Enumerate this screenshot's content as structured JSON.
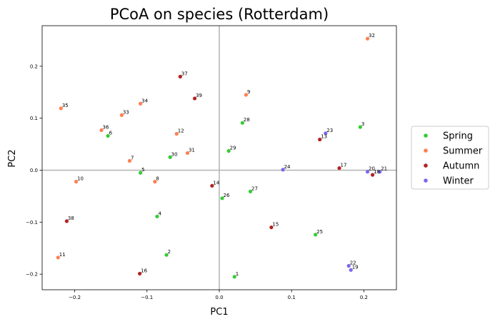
{
  "chart_data": {
    "type": "scatter",
    "title": "PCoA on species (Rotterdam)",
    "xlabel": "PC1",
    "ylabel": "PC2",
    "xlim": [
      -0.245,
      0.245
    ],
    "ylim": [
      -0.23,
      0.278
    ],
    "xticks": [
      -0.2,
      -0.1,
      0.0,
      0.1,
      0.2
    ],
    "xtick_labels": [
      "−0.2",
      "−0.1",
      "0.0",
      "0.1",
      "0.2"
    ],
    "yticks": [
      -0.2,
      -0.1,
      0.0,
      0.1,
      0.2
    ],
    "ytick_labels": [
      "−0.2",
      "−0.1",
      "0.0",
      "0.1",
      "0.2"
    ],
    "grid": false,
    "reference_lines": {
      "x": 0,
      "y": 0
    },
    "legend_position": "outside-right",
    "series": [
      {
        "name": "Spring",
        "color": "#33cc33",
        "points": [
          {
            "label": "1",
            "x": 0.021,
            "y": -0.205
          },
          {
            "label": "2",
            "x": -0.073,
            "y": -0.163
          },
          {
            "label": "3",
            "x": 0.195,
            "y": 0.083
          },
          {
            "label": "4",
            "x": -0.086,
            "y": -0.089
          },
          {
            "label": "5",
            "x": -0.109,
            "y": -0.005
          },
          {
            "label": "6",
            "x": -0.154,
            "y": 0.066
          },
          {
            "label": "25",
            "x": 0.133,
            "y": -0.124
          },
          {
            "label": "26",
            "x": 0.004,
            "y": -0.054
          },
          {
            "label": "27",
            "x": 0.043,
            "y": -0.041
          },
          {
            "label": "28",
            "x": 0.032,
            "y": 0.091
          },
          {
            "label": "29",
            "x": 0.013,
            "y": 0.037
          },
          {
            "label": "30",
            "x": -0.068,
            "y": 0.025
          }
        ]
      },
      {
        "name": "Summer",
        "color": "#ff7f50",
        "points": [
          {
            "label": "7",
            "x": -0.124,
            "y": 0.018
          },
          {
            "label": "8",
            "x": -0.089,
            "y": -0.022
          },
          {
            "label": "9",
            "x": 0.037,
            "y": 0.145
          },
          {
            "label": "10",
            "x": -0.198,
            "y": -0.022
          },
          {
            "label": "11",
            "x": -0.223,
            "y": -0.168
          },
          {
            "label": "12",
            "x": -0.059,
            "y": 0.07
          },
          {
            "label": "31",
            "x": -0.044,
            "y": 0.033
          },
          {
            "label": "32",
            "x": 0.205,
            "y": 0.253
          },
          {
            "label": "33",
            "x": -0.135,
            "y": 0.106
          },
          {
            "label": "34",
            "x": -0.109,
            "y": 0.128
          },
          {
            "label": "35",
            "x": -0.219,
            "y": 0.119
          },
          {
            "label": "36",
            "x": -0.163,
            "y": 0.077
          }
        ]
      },
      {
        "name": "Autumn",
        "color": "#b22222",
        "points": [
          {
            "label": "13",
            "x": 0.139,
            "y": 0.059
          },
          {
            "label": "14",
            "x": -0.01,
            "y": -0.03
          },
          {
            "label": "15",
            "x": 0.072,
            "y": -0.11
          },
          {
            "label": "16",
            "x": -0.11,
            "y": -0.199
          },
          {
            "label": "17",
            "x": 0.166,
            "y": 0.004
          },
          {
            "label": "18",
            "x": 0.212,
            "y": -0.009
          },
          {
            "label": "37",
            "x": -0.054,
            "y": 0.18
          },
          {
            "label": "38",
            "x": -0.211,
            "y": -0.098
          },
          {
            "label": "39",
            "x": -0.034,
            "y": 0.138
          }
        ]
      },
      {
        "name": "Winter",
        "color": "#7b68ee",
        "points": [
          {
            "label": "19",
            "x": 0.182,
            "y": -0.192
          },
          {
            "label": "20",
            "x": 0.205,
            "y": -0.003
          },
          {
            "label": "21",
            "x": 0.222,
            "y": -0.003
          },
          {
            "label": "22",
            "x": 0.179,
            "y": -0.184
          },
          {
            "label": "23",
            "x": 0.147,
            "y": 0.071
          },
          {
            "label": "24",
            "x": 0.088,
            "y": 0.001
          }
        ]
      }
    ]
  }
}
